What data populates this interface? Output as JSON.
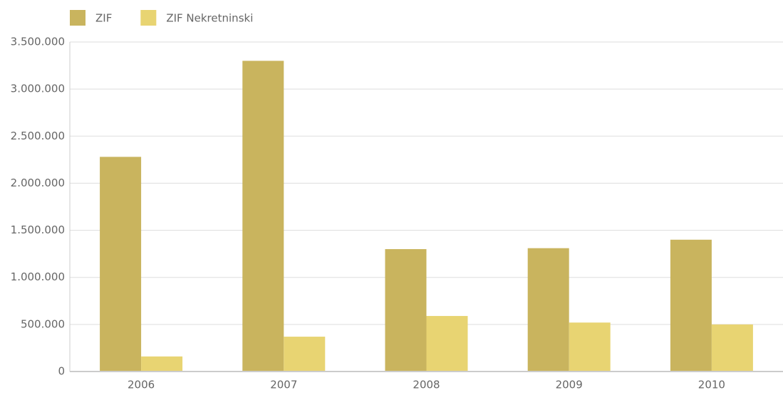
{
  "chart_data": {
    "type": "bar",
    "categories": [
      "2006",
      "2007",
      "2008",
      "2009",
      "2010"
    ],
    "series": [
      {
        "name": "ZIF",
        "color": "#c9b45e",
        "values": [
          2280000,
          3300000,
          1300000,
          1310000,
          1400000
        ]
      },
      {
        "name": "ZIF Nekretninski",
        "color": "#e8d472",
        "values": [
          160000,
          370000,
          590000,
          520000,
          500000
        ]
      }
    ],
    "ylim": [
      0,
      3500000
    ],
    "yticks": [
      0,
      {
        "value": 500000,
        "label": "500.000"
      },
      {
        "value": 1000000,
        "label": "1.000.000"
      },
      {
        "value": 1500000,
        "label": "1.500.000"
      },
      {
        "value": 2000000,
        "label": "2.000.000"
      },
      {
        "value": 2500000,
        "label": "2.500.000"
      },
      {
        "value": 3000000,
        "label": "3.000.000"
      },
      {
        "value": 3500000,
        "label": "3.500.000"
      }
    ],
    "grid": true,
    "legend": "top-left"
  }
}
